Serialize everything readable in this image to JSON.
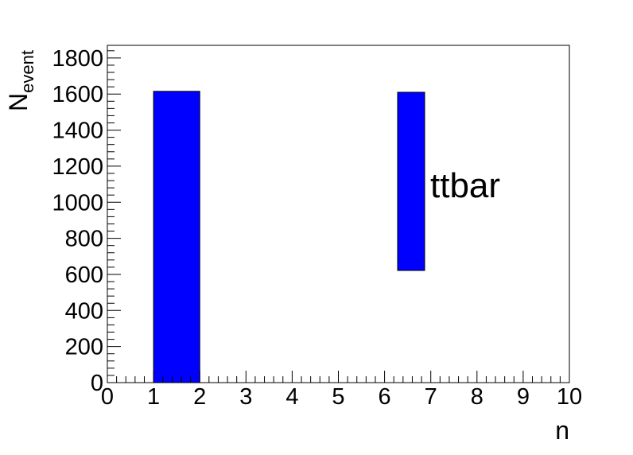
{
  "chart_data": {
    "type": "bar",
    "xlabel": "n",
    "ylabel": {
      "main": "N",
      "subscript": "event"
    },
    "xlim": [
      0,
      10
    ],
    "ylim": [
      0,
      1870
    ],
    "xticks": [
      "0",
      "1",
      "2",
      "3",
      "4",
      "5",
      "6",
      "7",
      "8",
      "9",
      "10"
    ],
    "yticks": [
      "0",
      "200",
      "400",
      "600",
      "800",
      "1000",
      "1200",
      "1400",
      "1600",
      "1800"
    ],
    "bins": [
      {
        "x0": 1,
        "x1": 2,
        "value": 1615
      }
    ],
    "legend": {
      "label": "ttbar",
      "swatch_color": "#0000ff"
    },
    "bar_color": "#0000ff",
    "grid": false
  }
}
